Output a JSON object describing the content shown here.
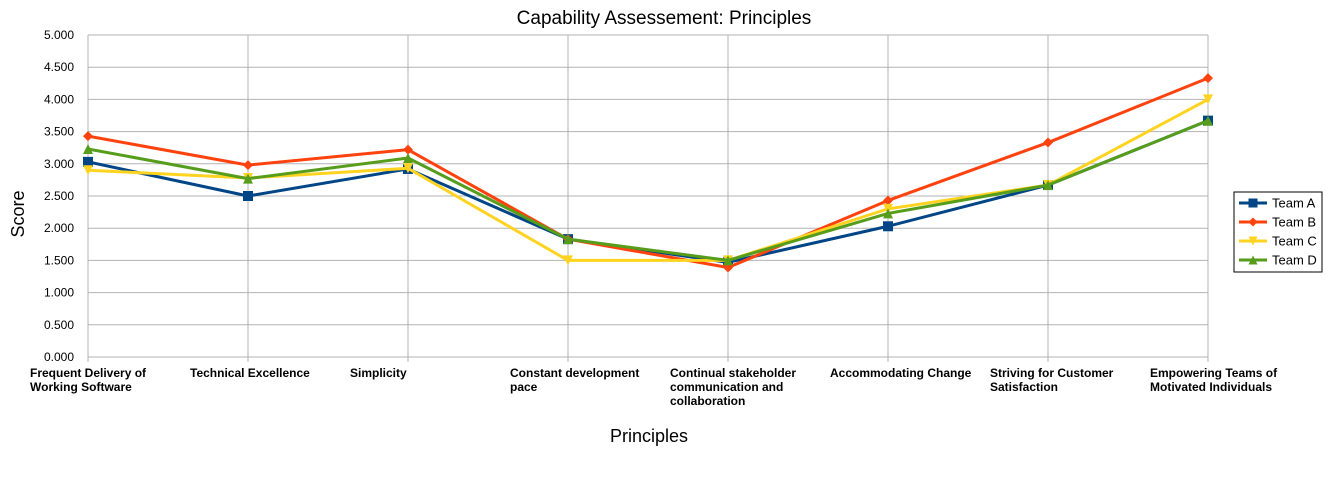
{
  "chart_data": {
    "type": "line",
    "title": "Capability Assessement: Principles",
    "xlabel": "Principles",
    "ylabel": "Score",
    "ylim": [
      0,
      5
    ],
    "ytick_labels": [
      "0.000",
      "0.500",
      "1.000",
      "1.500",
      "2.000",
      "2.500",
      "3.000",
      "3.500",
      "4.000",
      "4.500",
      "5.000"
    ],
    "grid": true,
    "legend_position": "right",
    "categories": [
      "Frequent Delivery of Working Software",
      "Technical Excellence",
      "Simplicity",
      "Constant development pace",
      "Continual stakeholder communication and collaboration",
      "Accommodating Change",
      "Striving for Customer Satisfaction",
      "Empowering Teams of Motivated Individuals"
    ],
    "category_label_lines": [
      [
        "Frequent Delivery of",
        "Working Software"
      ],
      [
        "Technical Excellence"
      ],
      [
        "Simplicity"
      ],
      [
        "Constant development",
        "pace"
      ],
      [
        "Continual stakeholder",
        "communication and",
        "collaboration"
      ],
      [
        "Accommodating Change"
      ],
      [
        "Striving for Customer",
        "Satisfaction"
      ],
      [
        "Empowering Teams of",
        "Motivated Individuals"
      ]
    ],
    "series": [
      {
        "name": "Team A",
        "color": "#004586",
        "marker": "square",
        "values": [
          3.03,
          2.5,
          2.92,
          1.83,
          1.47,
          2.03,
          2.67,
          3.67
        ]
      },
      {
        "name": "Team B",
        "color": "#ff420e",
        "marker": "diamond",
        "values": [
          3.43,
          2.98,
          3.22,
          1.83,
          1.39,
          2.43,
          3.33,
          4.33
        ]
      },
      {
        "name": "Team C",
        "color": "#ffd320",
        "marker": "triangle-down",
        "values": [
          2.9,
          2.78,
          2.93,
          1.5,
          1.5,
          2.3,
          2.67,
          4.0
        ]
      },
      {
        "name": "Team D",
        "color": "#579d1c",
        "marker": "triangle-up",
        "values": [
          3.23,
          2.77,
          3.09,
          1.83,
          1.5,
          2.23,
          2.67,
          3.67
        ]
      }
    ]
  }
}
